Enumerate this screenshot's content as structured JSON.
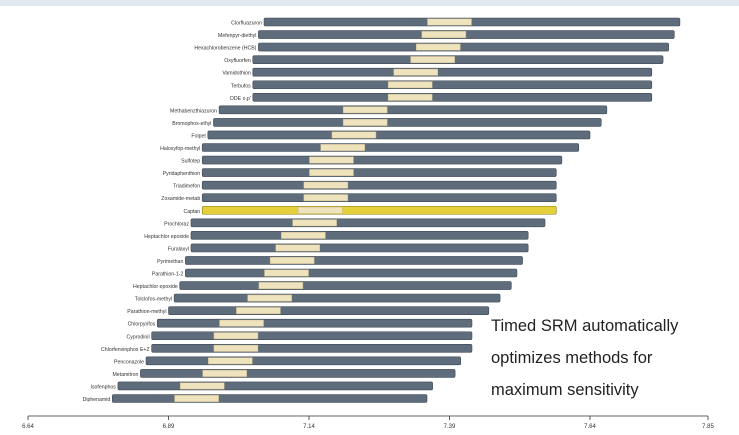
{
  "chart_data": {
    "type": "gantt",
    "xlim": [
      6.64,
      7.85
    ],
    "xticks": [
      "6.64",
      "6.89",
      "7.14",
      "7.39",
      "7.64",
      "7.85"
    ],
    "colors": {
      "bar": "#5e6c7c",
      "window": "#efe3bd",
      "highlight": "#e2cf3a",
      "axis": "#333333"
    },
    "rows": [
      {
        "label": "Clorfluazuron",
        "start": 7.06,
        "end": 7.8,
        "peak": 7.39,
        "highlight": false
      },
      {
        "label": "Mefenpyr-diethyl",
        "start": 7.05,
        "end": 7.79,
        "peak": 7.38,
        "highlight": false
      },
      {
        "label": "Hexachlorobenzene (HCB)",
        "start": 7.05,
        "end": 7.78,
        "peak": 7.37,
        "highlight": false
      },
      {
        "label": "Oxyfluorfen",
        "start": 7.04,
        "end": 7.77,
        "peak": 7.36,
        "highlight": false
      },
      {
        "label": "Vamidothion",
        "start": 7.04,
        "end": 7.75,
        "peak": 7.33,
        "highlight": false
      },
      {
        "label": "Terbufos",
        "start": 7.04,
        "end": 7.75,
        "peak": 7.32,
        "highlight": false
      },
      {
        "label": "DDE o,p'",
        "start": 7.04,
        "end": 7.75,
        "peak": 7.32,
        "highlight": false
      },
      {
        "label": "Methabenzthiazuron",
        "start": 6.98,
        "end": 7.67,
        "peak": 7.24,
        "highlight": false
      },
      {
        "label": "Bromophos-ethyl",
        "start": 6.97,
        "end": 7.66,
        "peak": 7.24,
        "highlight": false
      },
      {
        "label": "Folpet",
        "start": 6.96,
        "end": 7.64,
        "peak": 7.22,
        "highlight": false
      },
      {
        "label": "Haloxyfop-methyl",
        "start": 6.95,
        "end": 7.62,
        "peak": 7.2,
        "highlight": false
      },
      {
        "label": "Sulfotep",
        "start": 6.95,
        "end": 7.59,
        "peak": 7.18,
        "highlight": false
      },
      {
        "label": "Pyridaphenthion",
        "start": 6.95,
        "end": 7.58,
        "peak": 7.18,
        "highlight": false
      },
      {
        "label": "Triadimefon",
        "start": 6.95,
        "end": 7.58,
        "peak": 7.17,
        "highlight": false
      },
      {
        "label": "Zoxamide-metab",
        "start": 6.95,
        "end": 7.58,
        "peak": 7.17,
        "highlight": false
      },
      {
        "label": "Captan",
        "start": 6.95,
        "end": 7.58,
        "peak": 7.16,
        "highlight": true
      },
      {
        "label": "Prochloraz",
        "start": 6.93,
        "end": 7.56,
        "peak": 7.15,
        "highlight": false
      },
      {
        "label": "Heptachlor epoxide",
        "start": 6.93,
        "end": 7.53,
        "peak": 7.13,
        "highlight": false
      },
      {
        "label": "Furalaxyl",
        "start": 6.93,
        "end": 7.53,
        "peak": 7.12,
        "highlight": false
      },
      {
        "label": "Pyrimethan",
        "start": 6.92,
        "end": 7.52,
        "peak": 7.11,
        "highlight": false
      },
      {
        "label": "Parathion-1-2",
        "start": 6.92,
        "end": 7.51,
        "peak": 7.1,
        "highlight": false
      },
      {
        "label": "Heptachlor epoxide",
        "start": 6.91,
        "end": 7.5,
        "peak": 7.09,
        "highlight": false
      },
      {
        "label": "Tolclofos-methyl",
        "start": 6.9,
        "end": 7.48,
        "peak": 7.07,
        "highlight": false
      },
      {
        "label": "Parathion-methyl",
        "start": 6.89,
        "end": 7.46,
        "peak": 7.05,
        "highlight": false
      },
      {
        "label": "Chlorpyrifos",
        "start": 6.87,
        "end": 7.43,
        "peak": 7.02,
        "highlight": false
      },
      {
        "label": "Cyprodinil",
        "start": 6.86,
        "end": 7.43,
        "peak": 7.01,
        "highlight": false
      },
      {
        "label": "Chlorfenvinphos E+Z",
        "start": 6.86,
        "end": 7.43,
        "peak": 7.01,
        "highlight": false
      },
      {
        "label": "Penconazole",
        "start": 6.85,
        "end": 7.41,
        "peak": 7.0,
        "highlight": false
      },
      {
        "label": "Metamitron",
        "start": 6.84,
        "end": 7.4,
        "peak": 6.99,
        "highlight": false
      },
      {
        "label": "Isofenphos",
        "start": 6.8,
        "end": 7.36,
        "peak": 6.95,
        "highlight": false
      },
      {
        "label": "Diphenamid",
        "start": 6.79,
        "end": 7.35,
        "peak": 6.94,
        "highlight": false
      }
    ]
  },
  "caption": {
    "line1": "Timed SRM automatically",
    "line2": "optimizes methods for",
    "line3": "maximum sensitivity"
  }
}
